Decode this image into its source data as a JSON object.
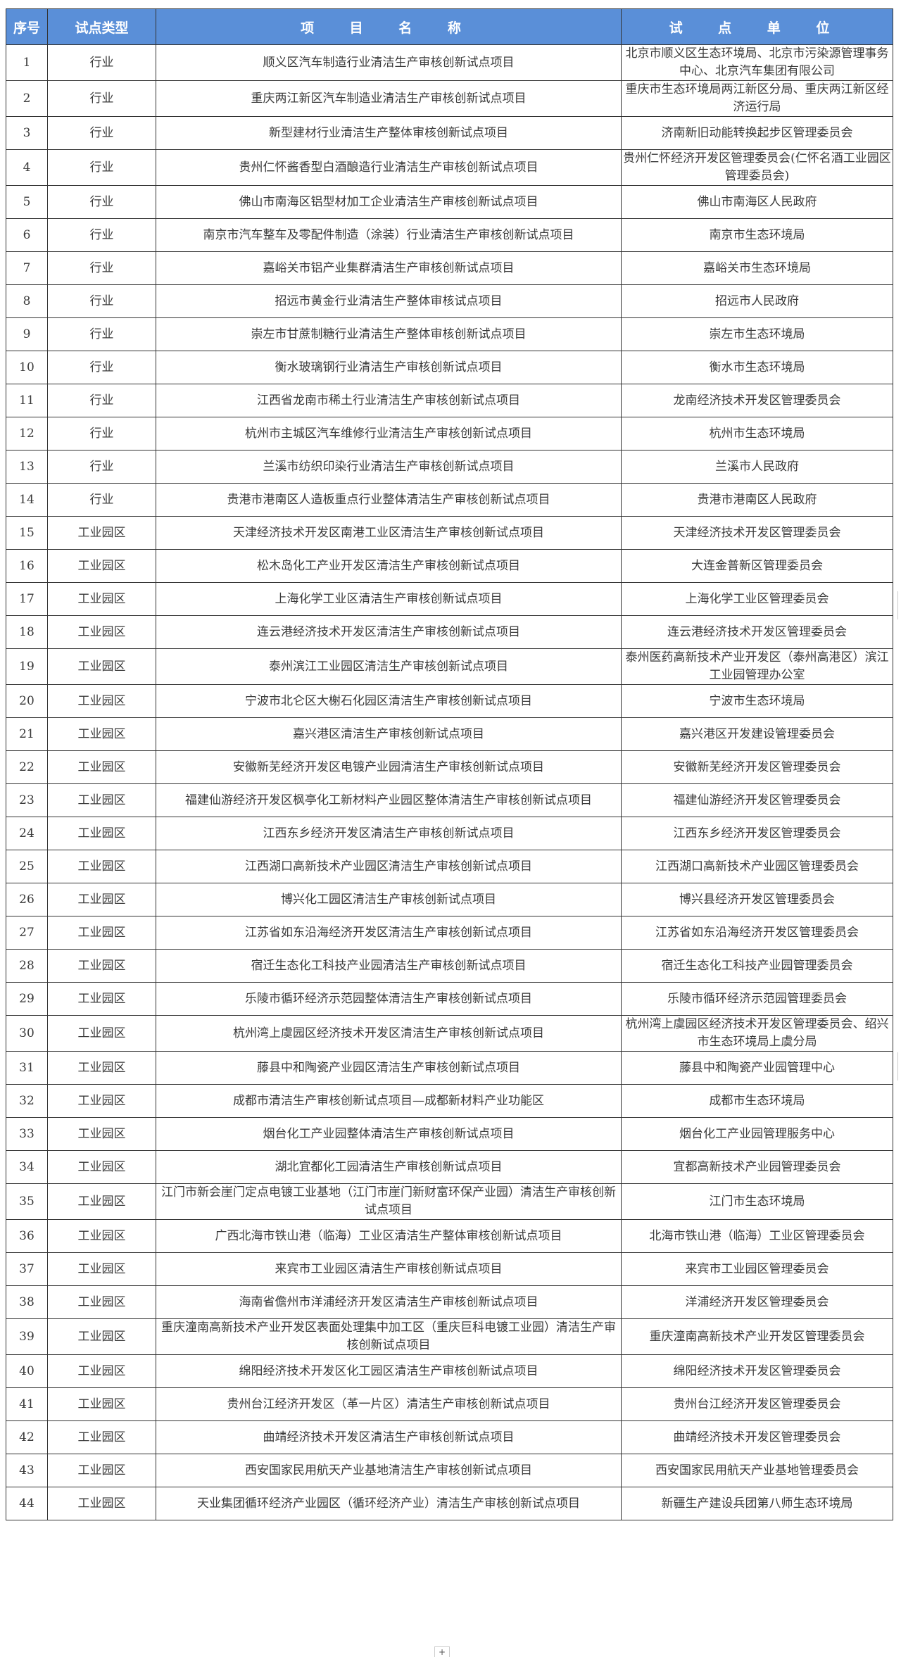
{
  "header": {
    "no": "序号",
    "type": "试点类型",
    "name": "项 目 名 称",
    "unit": "试 点 单 位"
  },
  "rows": [
    {
      "no": "1",
      "type": "行业",
      "name": "顺义区汽车制造行业清洁生产审核创新试点项目",
      "unit": "北京市顺义区生态环境局、北京市污染源管理事务中心、北京汽车集团有限公司"
    },
    {
      "no": "2",
      "type": "行业",
      "name": "重庆两江新区汽车制造业清洁生产审核创新试点项目",
      "unit": "重庆市生态环境局两江新区分局、重庆两江新区经济运行局"
    },
    {
      "no": "3",
      "type": "行业",
      "name": "新型建材行业清洁生产整体审核创新试点项目",
      "unit": "济南新旧动能转换起步区管理委员会"
    },
    {
      "no": "4",
      "type": "行业",
      "name": "贵州仁怀酱香型白酒酿造行业清洁生产审核创新试点项目",
      "unit": "贵州仁怀经济开发区管理委员会(仁怀名酒工业园区管理委员会)"
    },
    {
      "no": "5",
      "type": "行业",
      "name": "佛山市南海区铝型材加工企业清洁生产审核创新试点项目",
      "unit": "佛山市南海区人民政府"
    },
    {
      "no": "6",
      "type": "行业",
      "name": "南京市汽车整车及零配件制造（涂装）行业清洁生产审核创新试点项目",
      "unit": "南京市生态环境局"
    },
    {
      "no": "7",
      "type": "行业",
      "name": "嘉峪关市铝产业集群清洁生产审核创新试点项目",
      "unit": "嘉峪关市生态环境局"
    },
    {
      "no": "8",
      "type": "行业",
      "name": "招远市黄金行业清洁生产整体审核试点项目",
      "unit": "招远市人民政府"
    },
    {
      "no": "9",
      "type": "行业",
      "name": "崇左市甘蔗制糖行业清洁生产整体审核创新试点项目",
      "unit": "崇左市生态环境局"
    },
    {
      "no": "10",
      "type": "行业",
      "name": "衡水玻璃钢行业清洁生产审核创新试点项目",
      "unit": "衡水市生态环境局"
    },
    {
      "no": "11",
      "type": "行业",
      "name": "江西省龙南市稀土行业清洁生产审核创新试点项目",
      "unit": "龙南经济技术开发区管理委员会"
    },
    {
      "no": "12",
      "type": "行业",
      "name": "杭州市主城区汽车维修行业清洁生产审核创新试点项目",
      "unit": "杭州市生态环境局"
    },
    {
      "no": "13",
      "type": "行业",
      "name": "兰溪市纺织印染行业清洁生产审核创新试点项目",
      "unit": "兰溪市人民政府"
    },
    {
      "no": "14",
      "type": "行业",
      "name": "贵港市港南区人造板重点行业整体清洁生产审核创新试点项目",
      "unit": "贵港市港南区人民政府"
    },
    {
      "no": "15",
      "type": "工业园区",
      "name": "天津经济技术开发区南港工业区清洁生产审核创新试点项目",
      "unit": "天津经济技术开发区管理委员会"
    },
    {
      "no": "16",
      "type": "工业园区",
      "name": "松木岛化工产业开发区清洁生产审核创新试点项目",
      "unit": "大连金普新区管理委员会"
    },
    {
      "no": "17",
      "type": "工业园区",
      "name": "上海化学工业区清洁生产审核创新试点项目",
      "unit": "上海化学工业区管理委员会"
    },
    {
      "no": "18",
      "type": "工业园区",
      "name": "连云港经济技术开发区清洁生产审核创新试点项目",
      "unit": "连云港经济技术开发区管理委员会"
    },
    {
      "no": "19",
      "type": "工业园区",
      "name": "泰州滨江工业园区清洁生产审核创新试点项目",
      "unit": "泰州医药高新技术产业开发区（泰州高港区）滨江工业园管理办公室"
    },
    {
      "no": "20",
      "type": "工业园区",
      "name": "宁波市北仑区大榭石化园区清洁生产审核创新试点项目",
      "unit": "宁波市生态环境局"
    },
    {
      "no": "21",
      "type": "工业园区",
      "name": "嘉兴港区清洁生产审核创新试点项目",
      "unit": "嘉兴港区开发建设管理委员会"
    },
    {
      "no": "22",
      "type": "工业园区",
      "name": "安徽新芜经济开发区电镀产业园清洁生产审核创新试点项目",
      "unit": "安徽新芜经济开发区管理委员会"
    },
    {
      "no": "23",
      "type": "工业园区",
      "name": "福建仙游经济开发区枫亭化工新材料产业园区整体清洁生产审核创新试点项目",
      "unit": "福建仙游经济开发区管理委员会"
    },
    {
      "no": "24",
      "type": "工业园区",
      "name": "江西东乡经济开发区清洁生产审核创新试点项目",
      "unit": "江西东乡经济开发区管理委员会"
    },
    {
      "no": "25",
      "type": "工业园区",
      "name": "江西湖口高新技术产业园区清洁生产审核创新试点项目",
      "unit": "江西湖口高新技术产业园区管理委员会"
    },
    {
      "no": "26",
      "type": "工业园区",
      "name": "博兴化工园区清洁生产审核创新试点项目",
      "unit": "博兴县经济开发区管理委员会"
    },
    {
      "no": "27",
      "type": "工业园区",
      "name": "江苏省如东沿海经济开发区清洁生产审核创新试点项目",
      "unit": "江苏省如东沿海经济开发区管理委员会"
    },
    {
      "no": "28",
      "type": "工业园区",
      "name": "宿迁生态化工科技产业园清洁生产审核创新试点项目",
      "unit": "宿迁生态化工科技产业园管理委员会"
    },
    {
      "no": "29",
      "type": "工业园区",
      "name": "乐陵市循环经济示范园整体清洁生产审核创新试点项目",
      "unit": "乐陵市循环经济示范园管理委员会"
    },
    {
      "no": "30",
      "type": "工业园区",
      "name": "杭州湾上虞园区经济技术开发区清洁生产审核创新试点项目",
      "unit": "杭州湾上虞园区经济技术开发区管理委员会、绍兴市生态环境局上虞分局"
    },
    {
      "no": "31",
      "type": "工业园区",
      "name": "藤县中和陶瓷产业园区清洁生产审核创新试点项目",
      "unit": "藤县中和陶瓷产业园管理中心"
    },
    {
      "no": "32",
      "type": "工业园区",
      "name": "成都市清洁生产审核创新试点项目—成都新材料产业功能区",
      "unit": "成都市生态环境局"
    },
    {
      "no": "33",
      "type": "工业园区",
      "name": "烟台化工产业园整体清洁生产审核创新试点项目",
      "unit": "烟台化工产业园管理服务中心"
    },
    {
      "no": "34",
      "type": "工业园区",
      "name": "湖北宜都化工园清洁生产审核创新试点项目",
      "unit": "宜都高新技术产业园管理委员会"
    },
    {
      "no": "35",
      "type": "工业园区",
      "name": "江门市新会崖门定点电镀工业基地（江门市崖门新财富环保产业园）清洁生产审核创新试点项目",
      "unit": "江门市生态环境局"
    },
    {
      "no": "36",
      "type": "工业园区",
      "name": "广西北海市铁山港（临海）工业区清洁生产整体审核创新试点项目",
      "unit": "北海市铁山港（临海）工业区管理委员会"
    },
    {
      "no": "37",
      "type": "工业园区",
      "name": "来宾市工业园区清洁生产审核创新试点项目",
      "unit": "来宾市工业园区管理委员会"
    },
    {
      "no": "38",
      "type": "工业园区",
      "name": "海南省儋州市洋浦经济开发区清洁生产审核创新试点项目",
      "unit": "洋浦经济开发区管理委员会"
    },
    {
      "no": "39",
      "type": "工业园区",
      "name": "重庆潼南高新技术产业开发区表面处理集中加工区（重庆巨科电镀工业园）清洁生产审核创新试点项目",
      "unit": "重庆潼南高新技术产业开发区管理委员会"
    },
    {
      "no": "40",
      "type": "工业园区",
      "name": "绵阳经济技术开发区化工园区清洁生产审核创新试点项目",
      "unit": "绵阳经济技术开发区管理委员会"
    },
    {
      "no": "41",
      "type": "工业园区",
      "name": "贵州台江经济开发区（革一片区）清洁生产审核创新试点项目",
      "unit": "贵州台江经济开发区管理委员会"
    },
    {
      "no": "42",
      "type": "工业园区",
      "name": "曲靖经济技术开发区清洁生产审核创新试点项目",
      "unit": "曲靖经济技术开发区管理委员会"
    },
    {
      "no": "43",
      "type": "工业园区",
      "name": "西安国家民用航天产业基地清洁生产审核创新试点项目",
      "unit": "西安国家民用航天产业基地管理委员会"
    },
    {
      "no": "44",
      "type": "工业园区",
      "name": "天业集团循环经济产业园区（循环经济产业）清洁生产审核创新试点项目",
      "unit": "新疆生产建设兵团第八师生态环境局"
    }
  ],
  "footer": {
    "add_sheet": "+"
  },
  "colors": {
    "header_bg": "#5a8fd8",
    "header_text": "#ffffff"
  }
}
